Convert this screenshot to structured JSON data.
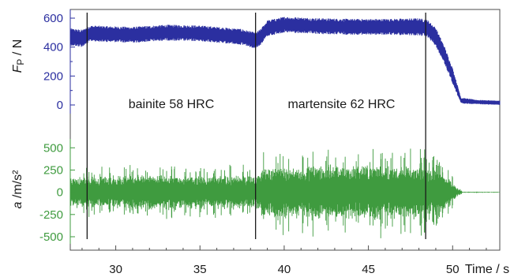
{
  "chart_data": {
    "type": "line",
    "x_axis": {
      "label": "Time / s",
      "xlim": [
        27.3,
        52.8
      ],
      "ticks": [
        30,
        35,
        40,
        45,
        50
      ],
      "tick_labels": [
        "30",
        "35",
        "40",
        "45",
        "50"
      ]
    },
    "top_panel": {
      "ylabel_main": "F",
      "ylabel_sub": "P",
      "ylabel_rest": " / N",
      "ylim": [
        -60,
        660
      ],
      "ticks": [
        0,
        200,
        400,
        600
      ],
      "tick_labels": [
        "0",
        "200",
        "400",
        "600"
      ],
      "color": "#2b2fa0",
      "series": {
        "name": "",
        "x": [
          27.3,
          28.0,
          28.5,
          29.5,
          31.0,
          33.0,
          35.0,
          36.5,
          37.5,
          38.3,
          38.6,
          39.0,
          40.0,
          42.0,
          44.0,
          46.0,
          48.0,
          48.5,
          49.0,
          49.5,
          50.0,
          50.5,
          51.5,
          52.8
        ],
        "center": [
          470,
          460,
          495,
          490,
          485,
          500,
          495,
          480,
          470,
          445,
          470,
          530,
          555,
          545,
          540,
          540,
          540,
          530,
          470,
          350,
          200,
          30,
          20,
          15
        ],
        "amplitude": [
          60,
          60,
          55,
          55,
          55,
          55,
          55,
          55,
          55,
          55,
          55,
          55,
          55,
          55,
          55,
          55,
          60,
          60,
          65,
          60,
          55,
          20,
          15,
          15
        ]
      }
    },
    "bottom_panel": {
      "ylabel_main": "a",
      "ylabel_rest": " /m/s²",
      "ylim": [
        -580,
        600
      ],
      "ticks": [
        -500,
        -250,
        0,
        250,
        500
      ],
      "tick_labels": [
        "-500",
        "-250",
        "0",
        "250",
        "500"
      ],
      "color": "#3f9b3f",
      "series": {
        "name": "",
        "x": [
          27.3,
          28.0,
          30.0,
          33.0,
          36.0,
          38.0,
          38.3,
          38.6,
          40.0,
          43.0,
          46.0,
          48.3,
          49.0,
          49.8,
          50.3,
          50.6,
          52.8
        ],
        "amplitude": [
          150,
          160,
          170,
          175,
          170,
          175,
          180,
          240,
          270,
          285,
          280,
          270,
          230,
          150,
          40,
          5,
          4
        ],
        "peak": [
          260,
          260,
          280,
          290,
          285,
          290,
          290,
          430,
          470,
          480,
          470,
          460,
          380,
          260,
          60,
          8,
          6
        ]
      }
    },
    "vertical_markers": [
      28.3,
      38.3,
      48.4
    ],
    "annotations": [
      {
        "text": "bainite 58 HRC",
        "x": 33.3,
        "y": 0.41
      },
      {
        "text": "martensite 62 HRC",
        "x": 43.4,
        "y": 0.41
      }
    ],
    "grid": false,
    "legend": "none"
  }
}
